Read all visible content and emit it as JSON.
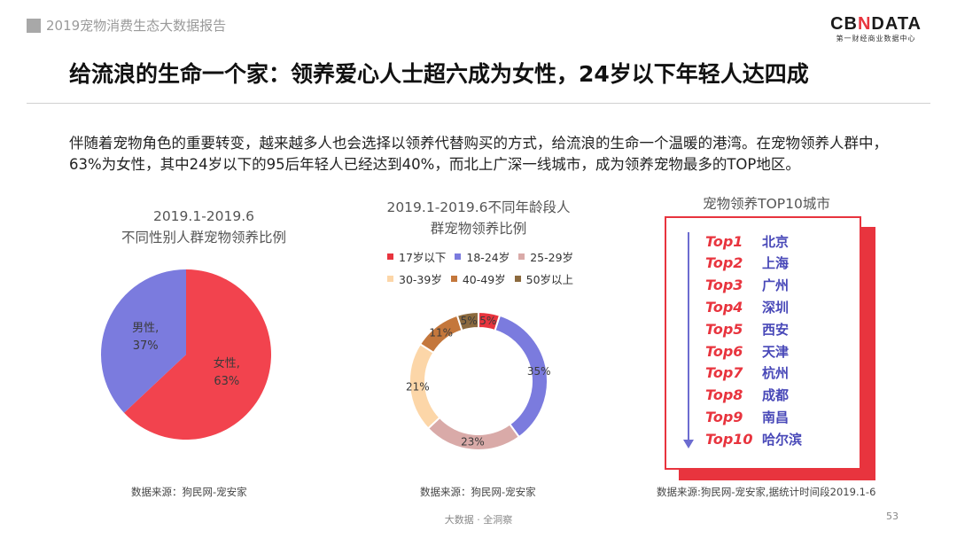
{
  "header": {
    "report_title": "2019宠物消费生态大数据报告",
    "logo_main_1": "CB",
    "logo_main_x": "N",
    "logo_main_2": "DATA",
    "logo_sub": "第一财经商业数据中心"
  },
  "headline": "给流浪的生命一个家：领养爱心人士超六成为女性，24岁以下年轻人达四成",
  "intro": "伴随着宠物角色的重要转变，越来越多人也会选择以领养代替购买的方式，给流浪的生命一个温暖的港湾。在宠物领养人群中，63%为女性，其中24岁以下的95后年轻人已经达到40%，而北上广深一线城市，成为领养宠物最多的TOP地区。",
  "colors": {
    "accent_red": "#e8343e",
    "male": "#7b7bde",
    "female": "#f2434e",
    "age_17": "#e8343e",
    "age_18_24": "#7b7bde",
    "age_25_29": "#d9aaa8",
    "age_30_39": "#fcd6a8",
    "age_40_49": "#c4773c",
    "age_50": "#8c6a3e",
    "city_text": "#4848b8"
  },
  "chart_data": [
    {
      "type": "pie",
      "title_line1": "2019.1-2019.6",
      "title_line2": "不同性别人群宠物领养比例",
      "slices": [
        {
          "name": "女性",
          "value": 63,
          "label": "63%"
        },
        {
          "name": "男性",
          "value": 37,
          "label": "37%"
        }
      ]
    },
    {
      "type": "pie",
      "variant": "donut",
      "title_line1": "2019.1-2019.6不同年龄段人",
      "title_line2": "群宠物领养比例",
      "legend": [
        "17岁以下",
        "18-24岁",
        "25-29岁",
        "30-39岁",
        "40-49岁",
        "50岁以上"
      ],
      "slices": [
        {
          "name": "17岁以下",
          "value": 5,
          "label": "5%"
        },
        {
          "name": "18-24岁",
          "value": 35,
          "label": "35%"
        },
        {
          "name": "25-29岁",
          "value": 23,
          "label": "23%"
        },
        {
          "name": "30-39岁",
          "value": 21,
          "label": "21%"
        },
        {
          "name": "40-49岁",
          "value": 11,
          "label": "11%"
        },
        {
          "name": "50岁以上",
          "value": 5,
          "label": "5%"
        }
      ]
    },
    {
      "type": "table",
      "title": "宠物领养TOP10城市",
      "rows": [
        {
          "rank": "Top1",
          "city": "北京"
        },
        {
          "rank": "Top2",
          "city": "上海"
        },
        {
          "rank": "Top3",
          "city": "广州"
        },
        {
          "rank": "Top4",
          "city": "深圳"
        },
        {
          "rank": "Top5",
          "city": "西安"
        },
        {
          "rank": "Top6",
          "city": "天津"
        },
        {
          "rank": "Top7",
          "city": "杭州"
        },
        {
          "rank": "Top8",
          "city": "成都"
        },
        {
          "rank": "Top9",
          "city": "南昌"
        },
        {
          "rank": "Top10",
          "city": "哈尔滨"
        }
      ]
    }
  ],
  "sources": {
    "gender": "数据来源：狗民网-宠安家",
    "age": "数据来源：狗民网-宠安家",
    "city": "数据来源:狗民网-宠安家,据统计时间段2019.1-6"
  },
  "footer": {
    "center": "大数据 · 全洞察",
    "page": "53"
  }
}
